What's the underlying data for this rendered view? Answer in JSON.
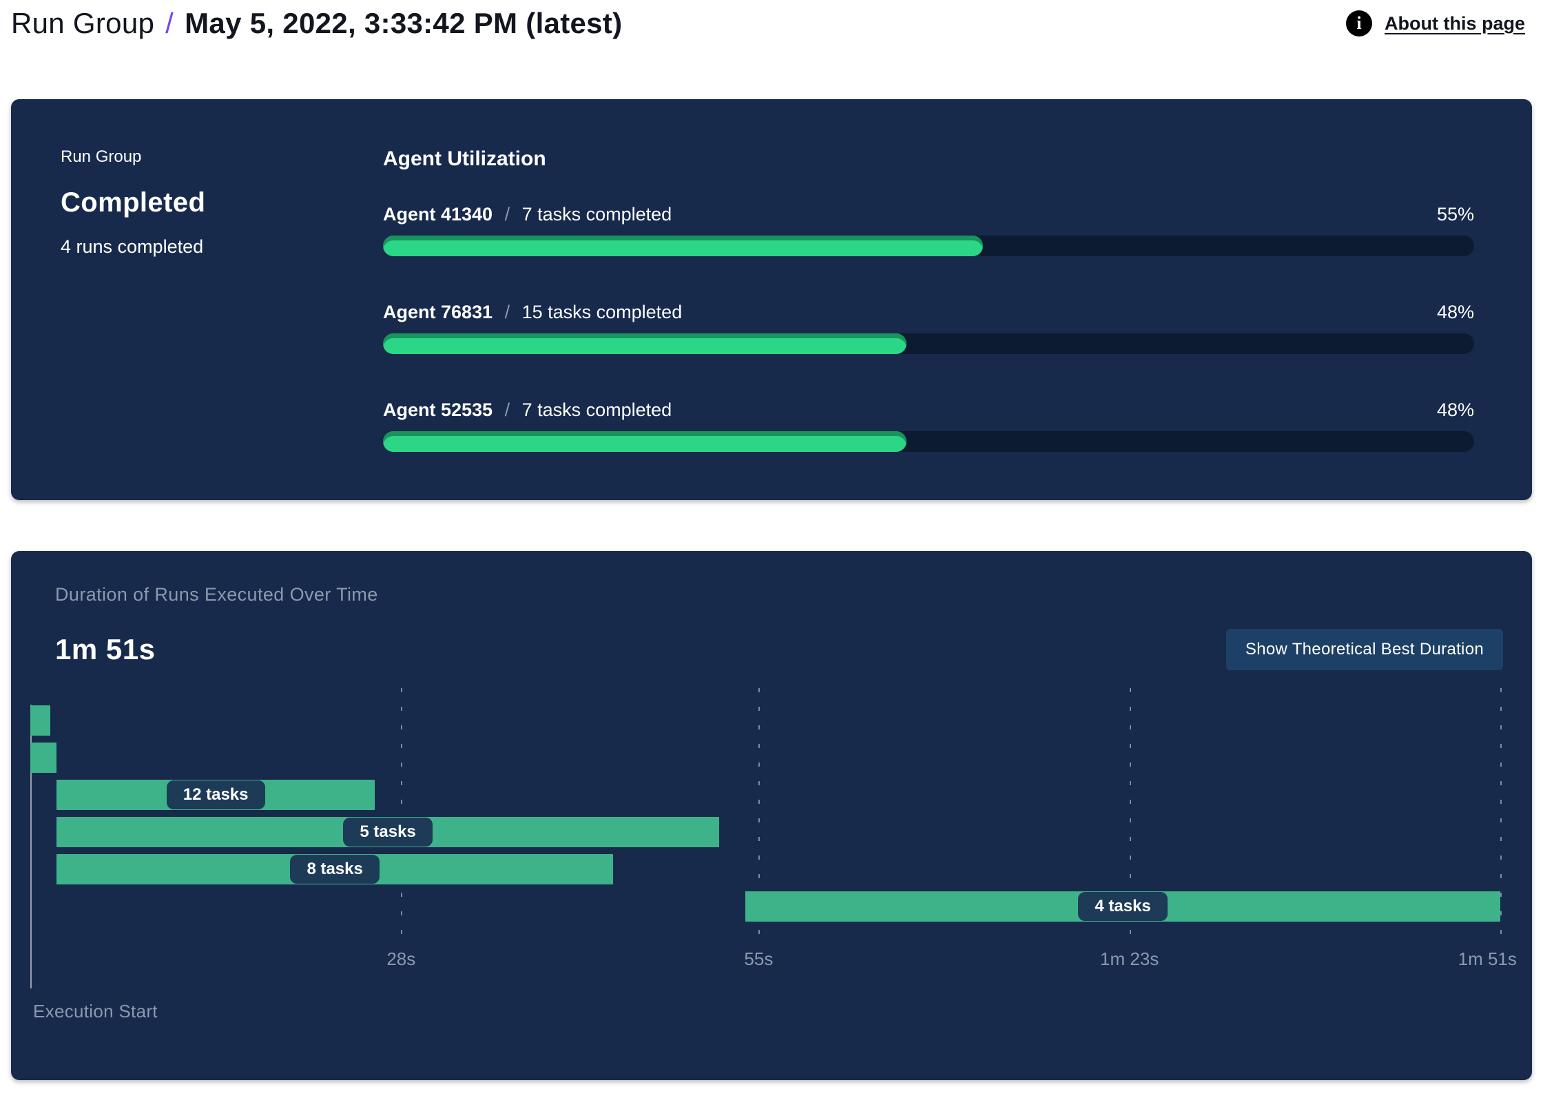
{
  "header": {
    "breadcrumb_root": "Run Group",
    "separator": "/",
    "page_title": "May 5, 2022, 3:33:42 PM (latest)",
    "about_link_label": "About this page",
    "info_icon_glyph": "i"
  },
  "run_group_summary": {
    "label": "Run Group",
    "status": "Completed",
    "detail": "4 runs completed"
  },
  "duration_panel": {
    "button_label": "Show Theoretical Best Duration"
  },
  "colors": {
    "panel_bg": "#172a4c",
    "accent_purple": "#7b44f2",
    "progress_track": "#0d1b30",
    "progress_fill": "#2bd787",
    "gantt_bar": "#3eb389",
    "pill_bg": "#1d3a57",
    "button_bg": "#1d4066",
    "muted_text": "#8b99ad"
  },
  "chart_data": [
    {
      "type": "bar",
      "title": "Agent Utilization",
      "orientation": "horizontal",
      "unit": "%",
      "xlim": [
        0,
        100
      ],
      "separator": "/",
      "bars": [
        {
          "name": "Agent 41340",
          "tasks_label": "7 tasks completed",
          "value": 55,
          "value_label": "55%"
        },
        {
          "name": "Agent 76831",
          "tasks_label": "15 tasks completed",
          "value": 48,
          "value_label": "48%"
        },
        {
          "name": "Agent 52535",
          "tasks_label": "7 tasks completed",
          "value": 48,
          "value_label": "48%"
        }
      ]
    },
    {
      "type": "gantt",
      "title": "Duration of Runs Executed Over Time",
      "total_duration_label": "1m 51s",
      "origin_label": "Execution Start",
      "time_range_seconds": [
        0,
        111
      ],
      "ticks": [
        {
          "seconds": 28,
          "label": "28s"
        },
        {
          "seconds": 55,
          "label": "55s"
        },
        {
          "seconds": 83,
          "label": "1m 23s"
        },
        {
          "seconds": 111,
          "label": "1m 51s"
        }
      ],
      "runs": [
        {
          "start_s": 0,
          "end_s": 1.5,
          "label": ""
        },
        {
          "start_s": 0,
          "end_s": 2,
          "label": ""
        },
        {
          "start_s": 2,
          "end_s": 26,
          "label": "12 tasks"
        },
        {
          "start_s": 2,
          "end_s": 52,
          "label": "5 tasks"
        },
        {
          "start_s": 2,
          "end_s": 44,
          "label": "8 tasks"
        },
        {
          "start_s": 54,
          "end_s": 111,
          "label": "4 tasks"
        }
      ]
    }
  ]
}
